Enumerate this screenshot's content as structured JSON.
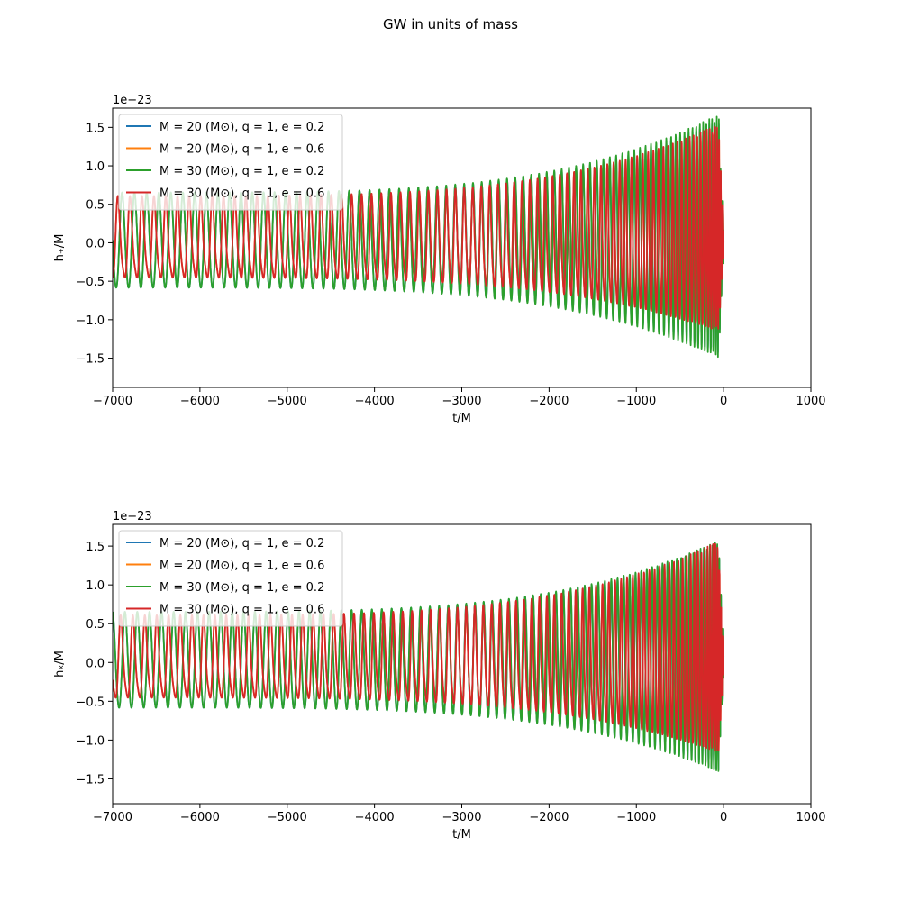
{
  "figure": {
    "title": "GW in units of mass"
  },
  "colors": {
    "blue": "#1f77b4",
    "orange": "#ff7f0e",
    "green": "#2ca02c",
    "red": "#d62728"
  },
  "chart_data": [
    {
      "type": "line",
      "title": "",
      "xlabel": "t/M",
      "ylabel": "h₊/M",
      "xlim": [
        -7000,
        1000
      ],
      "ylim": [
        -1.88,
        1.75
      ],
      "y_scale_label": "1e−23",
      "xticks": [
        "−7000",
        "−6000",
        "−5000",
        "−4000",
        "−3000",
        "−2000",
        "−1000",
        "0",
        "1000"
      ],
      "yticks": [
        "−1.5",
        "−1.0",
        "−0.5",
        "0.0",
        "0.5",
        "1.0",
        "1.5"
      ],
      "grid": false,
      "legend_position": "top-left",
      "legend": [
        "M = 20 (M⊙), q = 1, e = 0.2",
        "M = 20 (M⊙), q = 1, e = 0.6",
        "M = 30 (M⊙), q = 1, e = 0.2",
        "M = 30 (M⊙), q = 1, e = 0.6"
      ],
      "series": [
        {
          "name": "M = 20 (M⊙), q = 1, e = 0.2",
          "color": "#1f77b4",
          "t_start": -7000,
          "t_merge": 0,
          "amp_start": 0.66,
          "amp_peak": 1.65,
          "ecc": 0.2,
          "phase": 1.45,
          "cycles": 49
        },
        {
          "name": "M = 20 (M⊙), q = 1, e = 0.6",
          "color": "#ff7f0e",
          "t_start": -7000,
          "t_merge": 0,
          "amp_start": 0.62,
          "amp_peak": 1.6,
          "ecc": 0.6,
          "phase": 3.5,
          "cycles": 50
        },
        {
          "name": "M = 30 (M⊙), q = 1, e = 0.2",
          "color": "#2ca02c",
          "t_start": -7000,
          "t_merge": 0,
          "amp_start": 0.66,
          "amp_peak": 1.72,
          "ecc": 0.2,
          "phase": 1.45,
          "cycles": 49
        },
        {
          "name": "M = 30 (M⊙), q = 1, e = 0.6",
          "color": "#d62728",
          "t_start": -7000,
          "t_merge": 0,
          "amp_start": 0.62,
          "amp_peak": 1.6,
          "ecc": 0.6,
          "phase": 3.5,
          "cycles": 50
        }
      ]
    },
    {
      "type": "line",
      "title": "",
      "xlabel": "t/M",
      "ylabel": "hₓ/M",
      "xlim": [
        -7000,
        1000
      ],
      "ylim": [
        -1.82,
        1.78
      ],
      "y_scale_label": "1e−23",
      "xticks": [
        "−7000",
        "−6000",
        "−5000",
        "−4000",
        "−3000",
        "−2000",
        "−1000",
        "0",
        "1000"
      ],
      "yticks": [
        "−1.5",
        "−1.0",
        "−0.5",
        "0.0",
        "0.5",
        "1.0",
        "1.5"
      ],
      "grid": false,
      "legend_position": "top-left",
      "legend": [
        "M = 20 (M⊙), q = 1, e = 0.2",
        "M = 20 (M⊙), q = 1, e = 0.6",
        "M = 30 (M⊙), q = 1, e = 0.2",
        "M = 30 (M⊙), q = 1, e = 0.6"
      ],
      "series": [
        {
          "name": "M = 20 (M⊙), q = 1, e = 0.2",
          "color": "#1f77b4",
          "t_start": -7000,
          "t_merge": 0,
          "amp_start": 0.66,
          "amp_peak": 1.6,
          "ecc": 0.2,
          "phase": 0.0,
          "cycles": 49
        },
        {
          "name": "M = 20 (M⊙), q = 1, e = 0.6",
          "color": "#ff7f0e",
          "t_start": -7000,
          "t_merge": 0,
          "amp_start": 0.62,
          "amp_peak": 1.6,
          "ecc": 0.6,
          "phase": 2.0,
          "cycles": 50
        },
        {
          "name": "M = 30 (M⊙), q = 1, e = 0.2",
          "color": "#2ca02c",
          "t_start": -7000,
          "t_merge": 0,
          "amp_start": 0.66,
          "amp_peak": 1.62,
          "ecc": 0.2,
          "phase": 0.0,
          "cycles": 49
        },
        {
          "name": "M = 30 (M⊙), q = 1, e = 0.6",
          "color": "#d62728",
          "t_start": -7000,
          "t_merge": 0,
          "amp_start": 0.62,
          "amp_peak": 1.62,
          "ecc": 0.6,
          "phase": 2.0,
          "cycles": 50
        }
      ]
    }
  ]
}
